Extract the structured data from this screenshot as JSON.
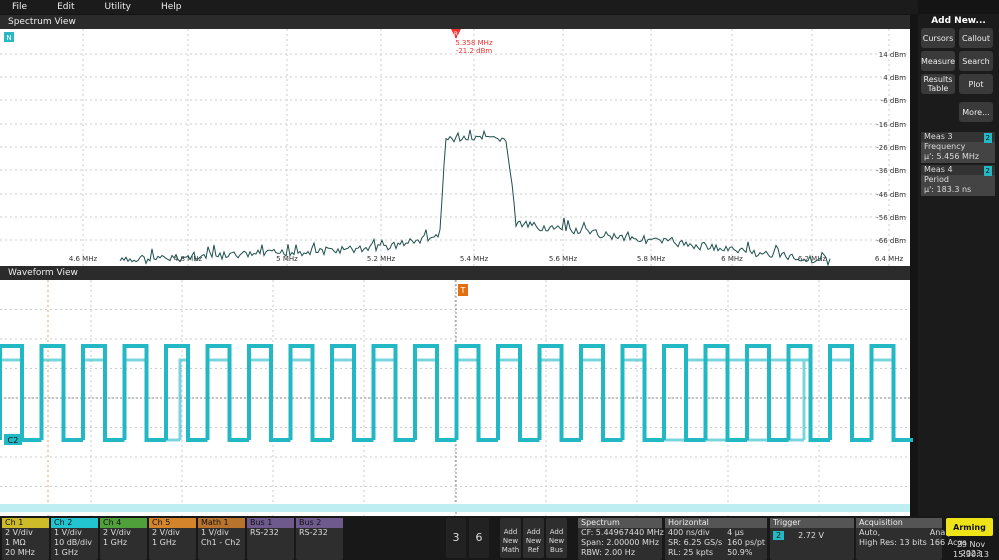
{
  "menu": [
    "File",
    "Edit",
    "Utility",
    "Help"
  ],
  "spectrum_view": {
    "title": "Spectrum View",
    "badge": "N",
    "marker_label": "R",
    "marker_freq": "5.358 MHz",
    "marker_level": "-21.2 dBm",
    "y_labels": [
      "14 dBm",
      "4 dBm",
      "-6 dBm",
      "-16 dBm",
      "-26 dBm",
      "-36 dBm",
      "-46 dBm",
      "-56 dBm",
      "-66 dBm"
    ],
    "x_labels": [
      "4.6 MHz",
      "4.8 MHz",
      "5 MHz",
      "5.2 MHz",
      "5.4 MHz",
      "5.6 MHz",
      "5.8 MHz",
      "6 MHz",
      "6.2 MHz",
      "6.4 MHz"
    ]
  },
  "waveform_view": {
    "title": "Waveform View",
    "trigger_marker": "T",
    "channel_marker": "C2"
  },
  "side_panel": {
    "title": "Add New...",
    "buttons": [
      "Cursors",
      "Callout",
      "Measure",
      "Search",
      "Results Table",
      "Plot",
      "More..."
    ],
    "meas": [
      {
        "name": "Meas 3",
        "badge": "2",
        "label": "Frequency",
        "value": "µ': 5.456 MHz"
      },
      {
        "name": "Meas 4",
        "badge": "2",
        "label": "Period",
        "value": "µ': 183.3 ns"
      }
    ]
  },
  "bottom_bar": {
    "channels": [
      {
        "name": "Ch 1",
        "color": "#cdbb2a",
        "lines": [
          "2 V/div",
          "1 MΩ",
          "20 MHz"
        ]
      },
      {
        "name": "Ch 2",
        "color": "#22c4d0",
        "lines": [
          "1 V/div",
          "10 dB/div",
          "1 GHz"
        ]
      },
      {
        "name": "Ch 4",
        "color": "#4f9f3a",
        "lines": [
          "2 V/div",
          "1 GHz"
        ]
      },
      {
        "name": "Ch 5",
        "color": "#d4852c",
        "lines": [
          "2 V/div",
          "1 GHz"
        ]
      },
      {
        "name": "Math 1",
        "color": "#b8742c",
        "lines": [
          "1 V/div",
          "Ch1 - Ch2"
        ]
      },
      {
        "name": "Bus 1",
        "color": "#6e5a8c",
        "lines": [
          "RS-232"
        ]
      },
      {
        "name": "Bus 2",
        "color": "#6e5a8c",
        "lines": [
          "RS-232"
        ]
      }
    ],
    "counters": [
      "3",
      "6"
    ],
    "add_new": [
      "Add New Math",
      "Add New Ref",
      "Add New Bus"
    ],
    "spectrum": {
      "title": "Spectrum",
      "lines": [
        "CF: 5.44967440 MHz",
        "Span: 2.00000 MHz",
        "RBW: 2.00 Hz"
      ]
    },
    "horizontal": {
      "title": "Horizontal",
      "lines": [
        "400 ns/div",
        "4 µs",
        "SR: 6.25 GS/s",
        "160 ps/pt",
        "RL: 25 kpts",
        "50.9%"
      ]
    },
    "trigger": {
      "title": "Trigger",
      "source": "2",
      "level": "2.72 V"
    },
    "acquisition": {
      "title": "Acquisition",
      "lines": [
        "Auto,",
        "Analyze",
        "High Res: 13 bits",
        "166 Acqs"
      ]
    },
    "status": "Arming",
    "date": "29 Nov 2023",
    "time": "15:30:13"
  }
}
